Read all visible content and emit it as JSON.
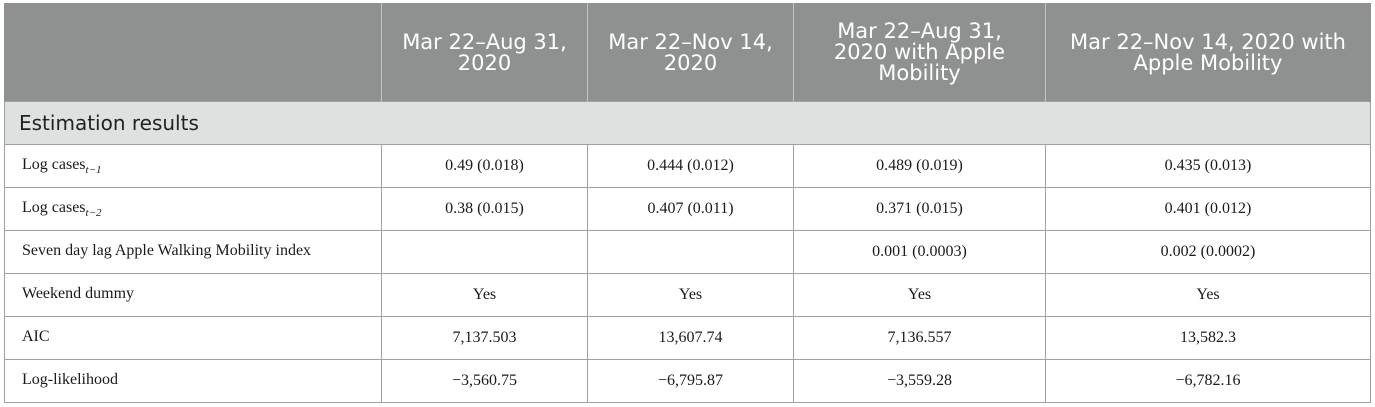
{
  "table": {
    "columns": [
      "",
      "Mar 22–Aug 31, 2020",
      "Mar 22–Nov 14, 2020",
      "Mar 22–Aug 31, 2020 with Apple Mobility",
      "Mar 22–Nov 14, 2020 with Apple Mobility"
    ],
    "section_label": "Estimation results",
    "rows": [
      {
        "label": "Log cases",
        "subscript": "t−1",
        "values": [
          "0.49 (0.018)",
          "0.444 (0.012)",
          "0.489 (0.019)",
          "0.435 (0.013)"
        ]
      },
      {
        "label": "Log cases",
        "subscript": "t−2",
        "values": [
          "0.38 (0.015)",
          "0.407 (0.011)",
          "0.371 (0.015)",
          "0.401 (0.012)"
        ]
      },
      {
        "label": "Seven day lag Apple Walking Mobility index",
        "subscript": "",
        "values": [
          "",
          "",
          "0.001 (0.0003)",
          "0.002 (0.0002)"
        ]
      },
      {
        "label": "Weekend dummy",
        "subscript": "",
        "values": [
          "Yes",
          "Yes",
          "Yes",
          "Yes"
        ]
      },
      {
        "label": "AIC",
        "subscript": "",
        "values": [
          "7,137.503",
          "13,607.74",
          "7,136.557",
          "13,582.3"
        ]
      },
      {
        "label": "Log-likelihood",
        "subscript": "",
        "values": [
          "−3,560.75",
          "−6,795.87",
          "−3,559.28",
          "−6,782.16"
        ]
      }
    ]
  },
  "colors": {
    "header_bg": "#8e9190",
    "section_bg": "#dfe1e0",
    "border": "#9fa1a0"
  }
}
